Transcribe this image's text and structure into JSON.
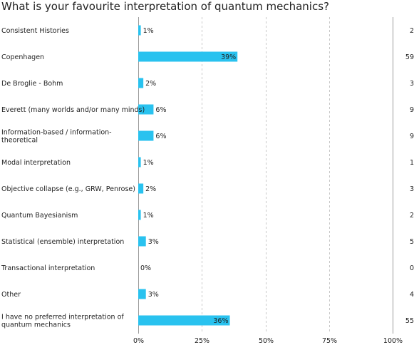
{
  "chart_data": {
    "type": "bar",
    "orientation": "horizontal",
    "title": "What is your favourite interpretation of quantum mechanics?",
    "categories": [
      "Consistent Histories",
      "Copenhagen",
      "De Broglie - Bohm",
      "Everett (many worlds and/or many minds)",
      "Information-based / information-theoretical",
      "Modal interpretation",
      "Objective collapse (e.g., GRW, Penrose)",
      "Quantum Bayesianism",
      "Statistical (ensemble) interpretation",
      "Transactional interpretation",
      "Other",
      "I have no preferred interpretation of quantum mechanics"
    ],
    "category_lines": [
      [
        "Consistent Histories"
      ],
      [
        "Copenhagen"
      ],
      [
        "De Broglie - Bohm"
      ],
      [
        "Everett (many worlds and/or many minds)"
      ],
      [
        "Information-based / information-",
        "theoretical"
      ],
      [
        "Modal interpretation"
      ],
      [
        "Objective collapse (e.g., GRW, Penrose)"
      ],
      [
        "Quantum Bayesianism"
      ],
      [
        "Statistical (ensemble) interpretation"
      ],
      [
        "Transactional interpretation"
      ],
      [
        "Other"
      ],
      [
        "I have no preferred interpretation of",
        "quantum mechanics"
      ]
    ],
    "values": [
      1,
      39,
      2,
      6,
      6,
      1,
      2,
      1,
      3,
      0,
      3,
      36
    ],
    "value_labels": [
      "1%",
      "39%",
      "2%",
      "6%",
      "6%",
      "1%",
      "2%",
      "1%",
      "3%",
      "0%",
      "3%",
      "36%"
    ],
    "counts": [
      "2",
      "59",
      "3",
      "9",
      "9",
      "1",
      "3",
      "2",
      "5",
      "0",
      "4",
      "55"
    ],
    "xlim": [
      0,
      100
    ],
    "xticks": [
      "0%",
      "25%",
      "50%",
      "75%",
      "100%"
    ],
    "grid": true,
    "bar_color": "#29c2ef",
    "grid_color": "#c8c8c8"
  }
}
